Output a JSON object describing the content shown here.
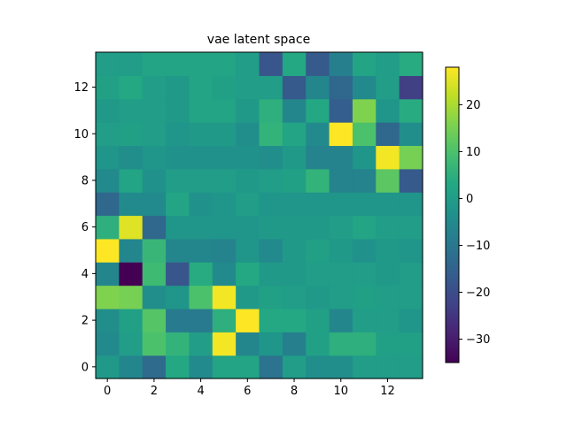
{
  "chart_data": {
    "type": "heatmap",
    "title": "vae latent space",
    "xlabel": "",
    "ylabel": "",
    "origin": "lower",
    "colormap": "viridis",
    "x_ticks": [
      0,
      2,
      4,
      6,
      8,
      10,
      12
    ],
    "y_ticks": [
      0,
      2,
      4,
      6,
      8,
      10,
      12
    ],
    "colorbar": {
      "min": -35,
      "max": 28,
      "ticks": [
        20,
        10,
        0,
        -10,
        -20,
        -30
      ]
    },
    "values": [
      [
        -1,
        -6,
        -13,
        3,
        -5,
        2,
        2,
        -11,
        0,
        -4,
        -4,
        0,
        0,
        0
      ],
      [
        -5,
        0,
        10,
        6,
        0,
        27,
        -6,
        -2,
        -8,
        1,
        5,
        5,
        1,
        1
      ],
      [
        -4,
        1,
        11,
        -9,
        -9,
        5,
        28,
        3,
        3,
        1,
        -6,
        0,
        0,
        -2
      ],
      [
        16,
        15,
        -4,
        -2,
        10,
        27,
        -1,
        1,
        0,
        -1,
        0,
        1,
        0,
        0
      ],
      [
        -6,
        -35,
        8,
        -18,
        4,
        -5,
        3,
        -1,
        -1,
        0,
        0,
        0,
        -1,
        0
      ],
      [
        28,
        -6,
        7,
        -6,
        -6,
        -7,
        -2,
        -5,
        -1,
        1,
        -1,
        -3,
        -1,
        -2
      ],
      [
        5,
        25,
        -14,
        -2,
        -2,
        -2,
        -2,
        -1,
        -1,
        -1,
        0,
        2,
        0,
        0
      ],
      [
        -14,
        -5,
        -5,
        2,
        -3,
        -2,
        0,
        -2,
        -2,
        -2,
        -2,
        -2,
        -2,
        -2
      ],
      [
        -5,
        2,
        -3,
        0,
        0,
        0,
        -1,
        0,
        1,
        6,
        -7,
        -7,
        12,
        -17
      ],
      [
        -2,
        -4,
        -2,
        -3,
        -3,
        -3,
        -3,
        -4,
        -1,
        -7,
        -7,
        -2,
        27,
        15
      ],
      [
        0,
        1,
        0,
        -2,
        -1,
        -1,
        -4,
        6,
        2,
        -5,
        28,
        10,
        -14,
        -4
      ],
      [
        -1,
        0,
        0,
        -1,
        2,
        2,
        -1,
        5,
        -6,
        3,
        -16,
        16,
        -2,
        4
      ],
      [
        1,
        3,
        0,
        -1,
        2,
        1,
        0,
        0,
        -17,
        -6,
        -14,
        -5,
        0,
        -23
      ],
      [
        0,
        0,
        2,
        2,
        2,
        2,
        0,
        -18,
        3,
        -17,
        -8,
        2,
        0,
        4
      ]
    ]
  }
}
